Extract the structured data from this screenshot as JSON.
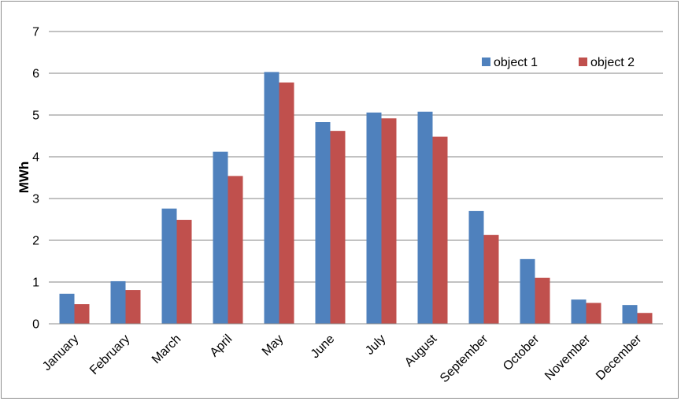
{
  "chart_data": {
    "type": "bar",
    "title": "",
    "xlabel": "",
    "ylabel": "MWh",
    "ylim": [
      0,
      7
    ],
    "yticks": [
      0,
      1,
      2,
      3,
      4,
      5,
      6,
      7
    ],
    "grid": true,
    "legend_position": "top-right",
    "categories": [
      "January",
      "February",
      "March",
      "April",
      "May",
      "June",
      "July",
      "August",
      "September",
      "October",
      "November",
      "December"
    ],
    "series": [
      {
        "name": "object 1",
        "color": "#4f81bd",
        "values": [
          0.72,
          1.02,
          2.76,
          4.12,
          6.03,
          4.83,
          5.06,
          5.08,
          2.7,
          1.55,
          0.58,
          0.45
        ]
      },
      {
        "name": "object 2",
        "color": "#c0504d",
        "values": [
          0.47,
          0.81,
          2.49,
          3.54,
          5.78,
          4.62,
          4.92,
          4.48,
          2.13,
          1.1,
          0.5,
          0.26
        ]
      }
    ]
  }
}
